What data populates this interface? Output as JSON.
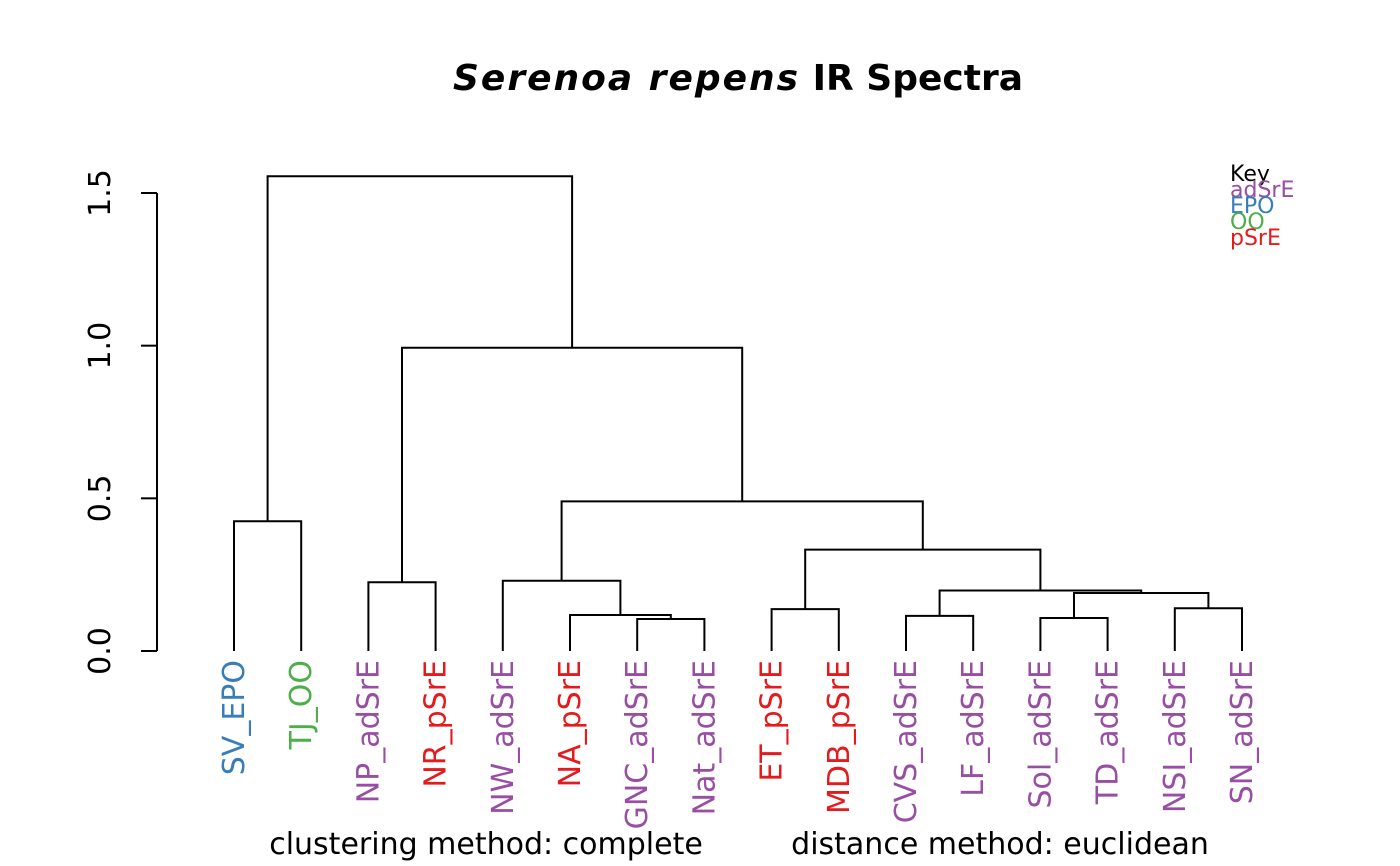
{
  "chart_data": {
    "type": "dendrogram",
    "title_italic": "Serenoa repens",
    "title_rest": "IR Spectra",
    "ylim": [
      0,
      1.5
    ],
    "yticks": [
      "0.0",
      "0.5",
      "1.0",
      "1.5"
    ],
    "bottom_left_note": "clustering method: complete",
    "bottom_right_note": "distance method: euclidean",
    "leaves": [
      {
        "name": "SV_EPO",
        "group": "EPO"
      },
      {
        "name": "TJ_OO",
        "group": "OO"
      },
      {
        "name": "NP_adSrE",
        "group": "adSrE"
      },
      {
        "name": "NR_pSrE",
        "group": "pSrE"
      },
      {
        "name": "NW_adSrE",
        "group": "adSrE"
      },
      {
        "name": "NA_pSrE",
        "group": "pSrE"
      },
      {
        "name": "GNC_adSrE",
        "group": "adSrE"
      },
      {
        "name": "Nat_adSrE",
        "group": "adSrE"
      },
      {
        "name": "ET_pSrE",
        "group": "pSrE"
      },
      {
        "name": "MDB_pSrE",
        "group": "pSrE"
      },
      {
        "name": "CVS_adSrE",
        "group": "adSrE"
      },
      {
        "name": "LF_adSrE",
        "group": "adSrE"
      },
      {
        "name": "Sol_adSrE",
        "group": "adSrE"
      },
      {
        "name": "TD_adSrE",
        "group": "adSrE"
      },
      {
        "name": "NSI_adSrE",
        "group": "adSrE"
      },
      {
        "name": "SN_adSrE",
        "group": "adSrE"
      }
    ],
    "merges": [
      {
        "id": "m1",
        "left": "L6",
        "right": "L7",
        "height": 0.105
      },
      {
        "id": "m2",
        "left": "L12",
        "right": "L13",
        "height": 0.108
      },
      {
        "id": "m3",
        "left": "L10",
        "right": "L11",
        "height": 0.115
      },
      {
        "id": "m4",
        "left": "L5",
        "right": "m1",
        "height": 0.118
      },
      {
        "id": "m5",
        "left": "L8",
        "right": "L9",
        "height": 0.137
      },
      {
        "id": "m6",
        "left": "L14",
        "right": "L15",
        "height": 0.14
      },
      {
        "id": "m7",
        "left": "m2",
        "right": "m6",
        "height": 0.19
      },
      {
        "id": "m8",
        "left": "m3",
        "right": "m7",
        "height": 0.198
      },
      {
        "id": "m9",
        "left": "L2",
        "right": "L3",
        "height": 0.225
      },
      {
        "id": "m10",
        "left": "L4",
        "right": "m4",
        "height": 0.23
      },
      {
        "id": "m11",
        "left": "m5",
        "right": "m8",
        "height": 0.332
      },
      {
        "id": "m12",
        "left": "L0",
        "right": "L1",
        "height": 0.425
      },
      {
        "id": "m13",
        "left": "m10",
        "right": "m11",
        "height": 0.49
      },
      {
        "id": "m14",
        "left": "m9",
        "right": "m13",
        "height": 0.993
      },
      {
        "id": "m15",
        "left": "m12",
        "right": "m14",
        "height": 1.555
      }
    ],
    "legend": {
      "title": "Key",
      "position": "top-right",
      "entries": [
        {
          "label": "adSrE",
          "color": "#984EA3"
        },
        {
          "label": "EPO",
          "color": "#377EB8"
        },
        {
          "label": "OO",
          "color": "#4DAF4A"
        },
        {
          "label": "pSrE",
          "color": "#E41A1C"
        }
      ]
    }
  }
}
